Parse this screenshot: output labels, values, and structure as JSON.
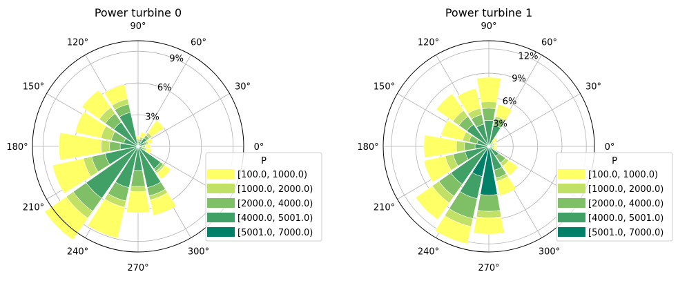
{
  "colors": {
    "bin_colors": [
      "#ffff66",
      "#c1e066",
      "#7fbf66",
      "#40a066",
      "#008066"
    ],
    "grid": "#b0b0b0",
    "axis": "#000000"
  },
  "chart_data": [
    {
      "type": "windrose",
      "title": "Power turbine 0",
      "angle_ticks": [
        "0°",
        "30°",
        "60°",
        "90°",
        "120°",
        "150°",
        "180°",
        "210°",
        "240°",
        "270°",
        "300°"
      ],
      "radial_ticks": [
        "3%",
        "6%",
        "9%"
      ],
      "radial_tick_values": [
        3,
        6,
        9
      ],
      "rmax": 10,
      "sector_width_deg": 22.5,
      "directions_deg": [
        0,
        22.5,
        45,
        67.5,
        90,
        112.5,
        135,
        157.5,
        180,
        202.5,
        225,
        247.5,
        270,
        292.5,
        315,
        337.5
      ],
      "legend_title": "P",
      "legend_placement": "lower-right",
      "series": [
        {
          "name": "[100.0, 1000.0)",
          "values": [
            0.5,
            0.4,
            1.4,
            0.5,
            0.3,
            1.4,
            2.0,
            2.5,
            4.0,
            3.0,
            2.5,
            3.0,
            2.0,
            1.5,
            0.7,
            0.5
          ]
        },
        {
          "name": "[1000.0, 2000.0)",
          "values": [
            0.3,
            0.2,
            0.3,
            0.2,
            0.2,
            0.5,
            0.7,
            1.0,
            0.8,
            0.8,
            0.8,
            0.6,
            0.5,
            0.4,
            0.2,
            0.2
          ]
        },
        {
          "name": "[2000.0, 4000.0)",
          "values": [
            0.2,
            0.2,
            0.3,
            0.2,
            0.2,
            0.8,
            1.0,
            1.2,
            1.0,
            1.3,
            1.5,
            1.3,
            1.5,
            0.8,
            0.3,
            0.2
          ]
        },
        {
          "name": "[4000.0, 5001.0)",
          "values": [
            0.2,
            0.6,
            1.0,
            0.5,
            0.3,
            3.3,
            2.8,
            1.4,
            1.7,
            3.2,
            6.0,
            4.0,
            2.3,
            4.0,
            2.6,
            0.4
          ]
        },
        {
          "name": "[5001.0, 7000.0)",
          "values": [
            0,
            0,
            0,
            0,
            0,
            0,
            0,
            0,
            0,
            0,
            0,
            0,
            0,
            0,
            0,
            0
          ]
        }
      ]
    },
    {
      "type": "windrose",
      "title": "Power turbine 1",
      "angle_ticks": [
        "0°",
        "30°",
        "60°",
        "90°",
        "120°",
        "150°",
        "180°",
        "210°",
        "240°",
        "270°",
        "300°"
      ],
      "radial_ticks": [
        "3%",
        "6%",
        "9%",
        "12%"
      ],
      "radial_tick_values": [
        3,
        6,
        9,
        12
      ],
      "rmax": 13,
      "sector_width_deg": 22.5,
      "directions_deg": [
        0,
        22.5,
        45,
        67.5,
        90,
        112.5,
        135,
        157.5,
        180,
        202.5,
        225,
        247.5,
        270,
        292.5,
        315,
        337.5
      ],
      "legend_title": "P",
      "legend_placement": "lower-right",
      "series": [
        {
          "name": "[100.0, 1000.0)",
          "values": [
            0.3,
            0.3,
            0.6,
            1.5,
            3.0,
            2.5,
            2.5,
            2.7,
            4.0,
            2.7,
            2.5,
            2.2,
            2.0,
            1.8,
            1.4,
            0.3
          ]
        },
        {
          "name": "[1000.0, 2000.0)",
          "values": [
            0.2,
            0.2,
            0.2,
            0.3,
            0.8,
            0.8,
            0.9,
            0.8,
            1.0,
            1.0,
            1.0,
            1.0,
            0.8,
            0.4,
            0.5,
            0.2
          ]
        },
        {
          "name": "[2000.0, 4000.0)",
          "values": [
            0.2,
            0.2,
            0.2,
            0.8,
            1.5,
            1.2,
            1.2,
            1.0,
            1.3,
            1.5,
            1.8,
            2.5,
            2.0,
            1.0,
            1.0,
            0.2
          ]
        },
        {
          "name": "[4000.0, 5001.0)",
          "values": [
            0.3,
            0.3,
            0.3,
            2.7,
            3.2,
            2.8,
            3.3,
            1.5,
            1.7,
            3.0,
            5.7,
            2.8,
            0,
            3.0,
            1.5,
            0.3
          ]
        },
        {
          "name": "[5001.0, 7000.0)",
          "values": [
            0,
            0,
            0,
            0,
            0,
            0,
            0,
            0,
            0,
            0,
            0,
            3.8,
            6.0,
            0,
            0,
            0
          ]
        }
      ]
    }
  ]
}
